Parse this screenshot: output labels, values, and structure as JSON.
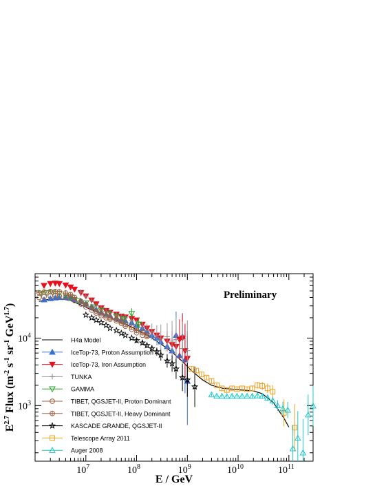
{
  "chart_data": {
    "type": "scatter",
    "title": "",
    "annotation": "Preliminary",
    "xlabel": "E / GeV",
    "ylabel": "E^{2.7} Flux (m^{-2} s^{-1} sr^{-1} GeV^{1.7})",
    "xscale": "log",
    "yscale": "log",
    "xlim": [
      1000000.0,
      300000000000.0
    ],
    "ylim": [
      150,
      90000
    ],
    "x_ticks": [
      {
        "value": 10000000.0,
        "base": "10",
        "exp": "7"
      },
      {
        "value": 100000000.0,
        "base": "10",
        "exp": "8"
      },
      {
        "value": 1000000000.0,
        "base": "10",
        "exp": "9"
      },
      {
        "value": 10000000000.0,
        "base": "10",
        "exp": "10"
      },
      {
        "value": 100000000000.0,
        "base": "10",
        "exp": "11"
      }
    ],
    "y_ticks": [
      {
        "value": 1000,
        "base": "10",
        "exp": "3"
      },
      {
        "value": 10000,
        "base": "10",
        "exp": "4"
      }
    ],
    "legend_position": "bottom-left",
    "series": [
      {
        "name": "H4a Model",
        "style": "line",
        "color": "#000000",
        "x": [
          1200000.0,
          2000000.0,
          3000000.0,
          5000000.0,
          8000000.0,
          12000000.0,
          20000000.0,
          30000000.0,
          50000000.0,
          80000000.0,
          120000000.0,
          200000000.0,
          300000000.0,
          500000000.0,
          800000000.0,
          1200000000.0,
          2000000000.0,
          3000000000.0,
          5000000000.0,
          8000000000.0,
          12000000000.0,
          20000000000.0,
          30000000000.0,
          50000000000.0,
          80000000000.0,
          100000000000.0
        ],
        "y": [
          35000,
          38000,
          38500,
          36000,
          31000,
          27000,
          23000,
          20000,
          17000,
          14500,
          12500,
          10000,
          8200,
          6200,
          4500,
          3300,
          2400,
          2000,
          1800,
          1750,
          1700,
          1650,
          1500,
          1100,
          650,
          480
        ]
      },
      {
        "name": "IceTop-73, Proton Assumption",
        "style": "marker",
        "marker": "tri-up-filled",
        "color": "#3a6fd1",
        "line": "#3a6fd1",
        "x": [
          1500000.0,
          2000000.0,
          2500000.0,
          3000000.0,
          4000000.0,
          5000000.0,
          6000000.0,
          8000000.0,
          10000000.0,
          13000000.0,
          16000000.0,
          20000000.0,
          25000000.0,
          30000000.0,
          40000000.0,
          50000000.0,
          60000000.0,
          80000000.0,
          100000000.0,
          130000000.0,
          160000000.0,
          200000000.0,
          250000000.0,
          300000000.0,
          400000000.0,
          500000000.0,
          600000000.0,
          700000000.0,
          800000000.0,
          900000000.0,
          1000000000.0
        ],
        "y": [
          37000,
          38500,
          39500,
          40000,
          40000,
          39000,
          37500,
          35000,
          32000,
          29000,
          26500,
          24000,
          22500,
          21500,
          20000,
          19000,
          18000,
          17000,
          15500,
          14000,
          12500,
          11000,
          10000,
          8800,
          7500,
          6500,
          11000,
          5500,
          10500,
          4800,
          2300
        ],
        "err": [
          0,
          0,
          0,
          0,
          0,
          0,
          0,
          0,
          0,
          0,
          0,
          0,
          0,
          0,
          0,
          0,
          0,
          0,
          0,
          0,
          0,
          0,
          0,
          0,
          0,
          0,
          0.35,
          0,
          0.35,
          0.5,
          0.65
        ]
      },
      {
        "name": "IceTop-73, Iron Assumption",
        "style": "marker",
        "marker": "tri-down-filled",
        "color": "#e8101e",
        "line": "#e8101e",
        "x": [
          1500000.0,
          2000000.0,
          2500000.0,
          3000000.0,
          4000000.0,
          5000000.0,
          6000000.0,
          8000000.0,
          10000000.0,
          13000000.0,
          16000000.0,
          20000000.0,
          25000000.0,
          30000000.0,
          40000000.0,
          50000000.0,
          60000000.0,
          80000000.0,
          100000000.0,
          130000000.0,
          160000000.0,
          200000000.0,
          250000000.0,
          300000000.0,
          400000000.0,
          500000000.0,
          600000000.0,
          700000000.0,
          800000000.0,
          900000000.0,
          1000000000.0
        ],
        "y": [
          60000,
          64000,
          65000,
          64000,
          61000,
          57000,
          53000,
          47000,
          42000,
          36500,
          32000,
          28000,
          25500,
          24000,
          22500,
          21000,
          20500,
          19500,
          18500,
          16000,
          14000,
          12500,
          11000,
          10000,
          9000,
          8000,
          7500,
          9500,
          10000,
          6500,
          5000
        ],
        "err": [
          0,
          0,
          0,
          0,
          0,
          0,
          0,
          0,
          0,
          0,
          0,
          0,
          0,
          0,
          0,
          0,
          0,
          0,
          0,
          0,
          0,
          0,
          0,
          0,
          0.15,
          0.2,
          0.25,
          0.3,
          0.35,
          0.4,
          0.4
        ]
      },
      {
        "name": "TUNKA",
        "style": "marker",
        "marker": "plus",
        "color": "#888888",
        "line": "#999999",
        "x": [
          8000000.0,
          10000000.0,
          13000000.0,
          16000000.0,
          20000000.0,
          25000000.0,
          30000000.0,
          40000000.0,
          50000000.0,
          60000000.0,
          80000000.0,
          100000000.0,
          130000000.0,
          160000000.0,
          200000000.0,
          250000000.0,
          300000000.0,
          400000000.0,
          500000000.0,
          600000000.0,
          800000000.0,
          1000000000.0
        ],
        "y": [
          48000,
          42000,
          36000,
          30000,
          28000,
          25000,
          24000,
          22000,
          21000,
          20000,
          18000,
          16000,
          14500,
          13000,
          12500,
          11000,
          10000,
          10500,
          9000,
          9500,
          7000,
          6500
        ],
        "err": [
          0,
          0,
          0,
          0,
          0,
          0,
          0,
          0,
          0,
          0,
          0.05,
          0.06,
          0.08,
          0.1,
          0.12,
          0.15,
          0.2,
          0.2,
          0.3,
          0.35,
          0.4,
          0.45
        ]
      },
      {
        "name": "GAMMA",
        "style": "marker",
        "marker": "tri-down-open",
        "color": "#22a022",
        "line": "#22a022",
        "x": [
          1300000.0,
          1700000.0,
          2200000.0,
          3000000.0,
          4000000.0,
          5000000.0,
          7000000.0,
          10000000.0,
          14000000.0,
          20000000.0,
          28000000.0,
          40000000.0,
          56000000.0,
          80000000.0,
          110000000.0
        ],
        "y": [
          46000,
          47000,
          47500,
          46000,
          43000,
          40000,
          36000,
          33000,
          29000,
          26000,
          23000,
          21000,
          19500,
          23000,
          16000
        ],
        "err": [
          0,
          0,
          0,
          0,
          0,
          0,
          0,
          0,
          0,
          0,
          0,
          0,
          0.05,
          0.08,
          0.1
        ]
      },
      {
        "name": "TIBET, QGSJET-II, Proton Dominant",
        "style": "marker",
        "marker": "circle-open",
        "color": "#a06040",
        "line": "#a06040",
        "x": [
          1200000.0,
          1500000.0,
          2000000.0,
          2500000.0,
          3000000.0,
          4000000.0,
          5000000.0,
          6000000.0,
          8000000.0,
          10000000.0,
          13000000.0,
          16000000.0,
          20000000.0,
          25000000.0,
          30000000.0,
          40000000.0,
          50000000.0,
          60000000.0,
          80000000.0,
          100000000.0,
          130000000.0,
          160000000.0
        ],
        "y": [
          40000,
          41000,
          42000,
          42500,
          42000,
          41000,
          39000,
          36000,
          32000,
          29000,
          26000,
          23500,
          21500,
          20000,
          19000,
          18000,
          16500,
          15000,
          13500,
          12000,
          11000,
          10500
        ],
        "err": [
          0,
          0,
          0,
          0,
          0,
          0,
          0,
          0,
          0,
          0,
          0,
          0,
          0,
          0,
          0,
          0,
          0,
          0,
          0,
          0,
          0,
          0
        ]
      },
      {
        "name": "TIBET, QGSJET-II, Heavy Dominant",
        "style": "marker",
        "marker": "circle-plus",
        "color": "#a06040",
        "line": "#a06040",
        "x": [
          1200000.0,
          1500000.0,
          2000000.0,
          2500000.0,
          3000000.0,
          4000000.0,
          5000000.0,
          6000000.0,
          8000000.0,
          10000000.0,
          13000000.0,
          16000000.0,
          20000000.0,
          25000000.0,
          30000000.0,
          40000000.0,
          50000000.0,
          60000000.0,
          80000000.0,
          100000000.0,
          130000000.0,
          160000000.0
        ],
        "y": [
          47000,
          48000,
          49000,
          49000,
          48500,
          46500,
          44000,
          40000,
          35000,
          31500,
          28000,
          25000,
          23000,
          21500,
          20000,
          19000,
          17500,
          16000,
          14500,
          13000,
          12000,
          11000
        ],
        "err": [
          0,
          0,
          0,
          0,
          0,
          0,
          0,
          0,
          0,
          0,
          0,
          0,
          0,
          0,
          0,
          0,
          0,
          0,
          0,
          0,
          0,
          0
        ]
      },
      {
        "name": "KASCADE GRANDE, QGSJET-II",
        "style": "marker",
        "marker": "star-open",
        "color": "#000000",
        "line": "#000000",
        "x": [
          10000000.0,
          13000000.0,
          16000000.0,
          20000000.0,
          25000000.0,
          30000000.0,
          40000000.0,
          50000000.0,
          60000000.0,
          80000000.0,
          100000000.0,
          130000000.0,
          160000000.0,
          200000000.0,
          250000000.0,
          300000000.0,
          400000000.0,
          500000000.0,
          600000000.0,
          800000000.0,
          1000000000.0,
          1400000000.0
        ],
        "y": [
          22000,
          20000,
          18500,
          17000,
          15500,
          14000,
          13000,
          11800,
          11000,
          10000,
          9200,
          8500,
          7800,
          7000,
          6300,
          5600,
          4600,
          4200,
          3500,
          2600,
          2400,
          1900
        ],
        "err": [
          0,
          0,
          0,
          0,
          0,
          0,
          0,
          0,
          0,
          0,
          0.03,
          0.03,
          0.04,
          0.05,
          0.06,
          0.08,
          0.1,
          0.12,
          0.15,
          0.2,
          0.25,
          0.3
        ]
      },
      {
        "name": "Telescope Array 2011",
        "style": "marker",
        "marker": "square-open",
        "color": "#f0a020",
        "line": "#f0a020",
        "x": [
          1200000000.0,
          1500000000.0,
          1900000000.0,
          2400000000.0,
          3000000000.0,
          3800000000.0,
          4800000000.0,
          6000000000.0,
          7600000000.0,
          9500000000.0,
          12000000000.0,
          15000000000.0,
          19000000000.0,
          24000000000.0,
          30000000000.0,
          38000000000.0,
          48000000000.0,
          80000000000.0,
          130000000000.0
        ],
        "y": [
          3500,
          3300,
          2900,
          2600,
          2300,
          2000,
          1800,
          1700,
          1800,
          1750,
          1800,
          1750,
          1800,
          2000,
          1950,
          1800,
          1600,
          780,
          470
        ],
        "err": [
          0.03,
          0.03,
          0.03,
          0.03,
          0.03,
          0.03,
          0.03,
          0.03,
          0.03,
          0.03,
          0.03,
          0.03,
          0.04,
          0.05,
          0.06,
          0.07,
          0.1,
          0.2,
          0.35
        ]
      },
      {
        "name": "Auger 2008",
        "style": "marker",
        "marker": "tri-up-open",
        "color": "#20c8c8",
        "line": "#20c8c8",
        "x": [
          3000000000.0,
          3800000000.0,
          4800000000.0,
          6000000000.0,
          7600000000.0,
          9500000000.0,
          12000000000.0,
          15000000000.0,
          19000000000.0,
          24000000000.0,
          30000000000.0,
          38000000000.0,
          48000000000.0,
          60000000000.0,
          76000000000.0,
          95000000000.0,
          120000000000.0,
          150000000000.0,
          190000000000.0,
          240000000000.0,
          300000000000.0
        ],
        "y": [
          1450,
          1380,
          1380,
          1370,
          1380,
          1380,
          1380,
          1380,
          1380,
          1400,
          1380,
          1300,
          1180,
          1000,
          900,
          860,
          230,
          330,
          200,
          730,
          990
        ],
        "err": [
          0.02,
          0.02,
          0.02,
          0.02,
          0.02,
          0.02,
          0.02,
          0.02,
          0.03,
          0.03,
          0.04,
          0.05,
          0.06,
          0.08,
          0.1,
          0.12,
          0.35,
          0.4,
          0.5,
          0.3,
          0.3
        ]
      }
    ]
  }
}
